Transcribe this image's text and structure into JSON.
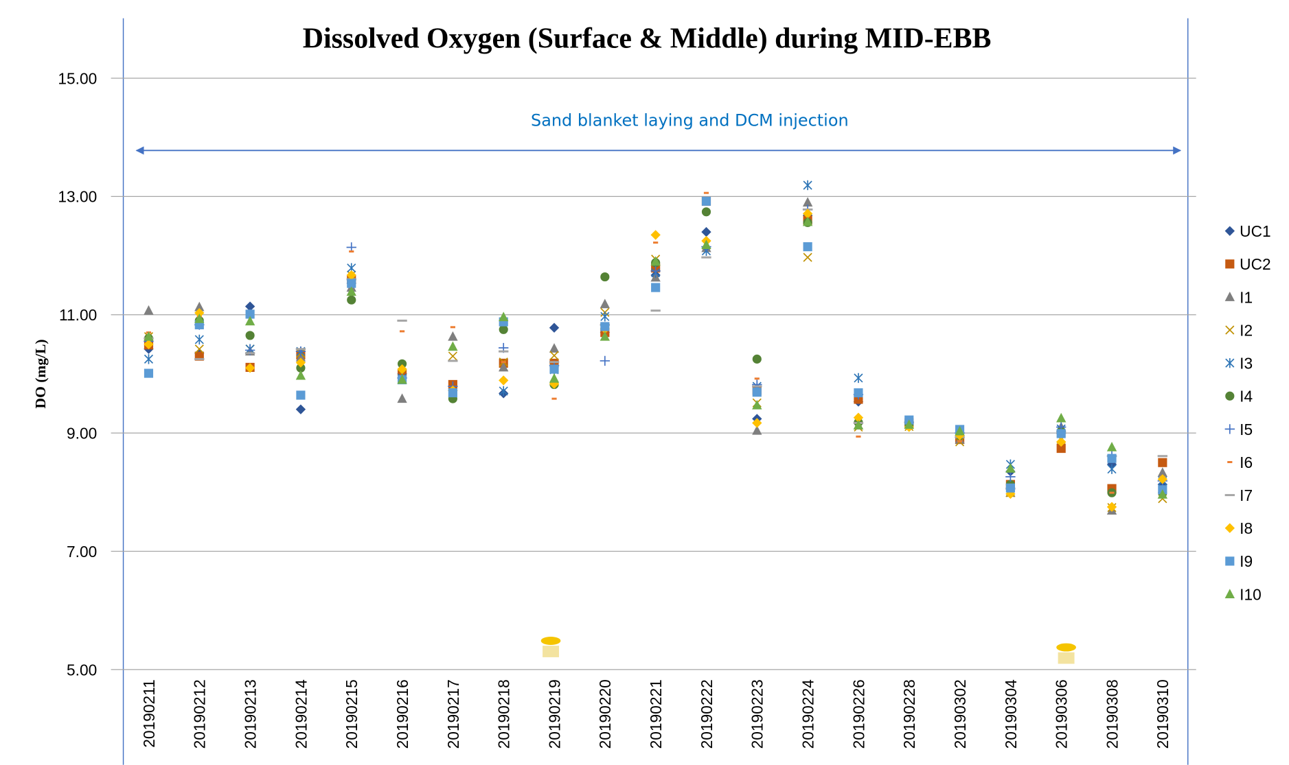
{
  "chart_data": {
    "type": "scatter",
    "title": "Dissolved Oxygen (Surface & Middle) during MID-EBB",
    "y_label": "DO (mg/L)",
    "annotation": "Sand blanket laying and DCM injection",
    "categories": [
      "20190211",
      "20190212",
      "20190213",
      "20190214",
      "20190215",
      "20190216",
      "20190217",
      "20190218",
      "20190219",
      "20190220",
      "20190221",
      "20190222",
      "20190223",
      "20190224",
      "20190226",
      "20190228",
      "20190302",
      "20190304",
      "20190306",
      "20190308",
      "20190310"
    ],
    "ylim": [
      5,
      15
    ],
    "yticks": [
      {
        "value": 5,
        "label": "5.00"
      },
      {
        "value": 7,
        "label": "7.00"
      },
      {
        "value": 9,
        "label": "9.00"
      },
      {
        "value": 11,
        "label": "11.00"
      },
      {
        "value": 13,
        "label": "13.00"
      },
      {
        "value": 15,
        "label": "15.00"
      }
    ],
    "grid": true,
    "legend": "right",
    "series": [
      {
        "name": "UC1",
        "color": "#2f5597",
        "marker": "diamond",
        "values": [
          10.42,
          10.35,
          11.14,
          9.4,
          11.53,
          10.0,
          9.72,
          9.67,
          10.78,
          10.7,
          11.67,
          12.4,
          9.24,
          12.68,
          9.53,
          9.17,
          8.96,
          8.35,
          9.03,
          8.47,
          8.13
        ]
      },
      {
        "name": "UC2",
        "color": "#c55a11",
        "marker": "square",
        "values": [
          10.49,
          10.3,
          10.11,
          10.32,
          11.6,
          10.0,
          9.82,
          10.18,
          10.18,
          10.7,
          11.79,
          12.92,
          9.72,
          12.6,
          9.57,
          9.17,
          8.89,
          8.13,
          8.74,
          8.06,
          8.5
        ]
      },
      {
        "name": "I1",
        "color": "#7f7f7f",
        "marker": "triangle",
        "values": [
          11.07,
          11.13,
          10.38,
          10.28,
          11.46,
          9.58,
          10.63,
          10.11,
          10.43,
          11.18,
          11.63,
          12.13,
          9.04,
          12.9,
          9.13,
          9.14,
          8.89,
          7.99,
          9.1,
          7.69,
          8.33
        ]
      },
      {
        "name": "I2",
        "color": "#bf9000",
        "marker": "x",
        "values": [
          10.63,
          10.42,
          10.42,
          10.35,
          11.67,
          10.0,
          10.3,
          10.2,
          10.31,
          11.04,
          11.94,
          12.18,
          9.51,
          11.97,
          9.1,
          9.11,
          8.85,
          7.99,
          8.89,
          7.74,
          7.89
        ]
      },
      {
        "name": "I3",
        "color": "#2e75b6",
        "marker": "asterisk",
        "values": [
          10.25,
          10.58,
          10.42,
          10.38,
          11.79,
          9.93,
          9.68,
          9.71,
          10.07,
          10.97,
          11.71,
          12.08,
          9.79,
          13.19,
          9.93,
          9.19,
          9.0,
          8.47,
          9.07,
          8.39,
          8.19
        ]
      },
      {
        "name": "I4",
        "color": "#548235",
        "marker": "circle",
        "values": [
          10.6,
          10.9,
          10.65,
          10.1,
          11.25,
          10.17,
          9.58,
          10.75,
          9.82,
          11.64,
          11.88,
          12.74,
          10.25,
          12.56,
          9.18,
          9.15,
          8.96,
          8.13,
          9.03,
          7.99,
          7.99
        ]
      },
      {
        "name": "I5",
        "color": "#4472c4",
        "marker": "plus",
        "values": [
          10.55,
          10.83,
          10.4,
          10.38,
          12.14,
          9.93,
          9.79,
          10.44,
          10.14,
          10.22,
          11.74,
          12.15,
          9.82,
          12.78,
          9.65,
          9.18,
          9.0,
          8.26,
          9.1,
          8.61,
          8.19
        ]
      },
      {
        "name": "I6",
        "color": "#ed7d31",
        "marker": "dash",
        "values": [
          10.7,
          10.97,
          10.1,
          10.2,
          12.07,
          10.72,
          10.79,
          10.2,
          9.58,
          10.76,
          12.22,
          13.06,
          9.92,
          12.68,
          8.94,
          9.13,
          8.86,
          8.06,
          8.96,
          7.99,
          8.26
        ]
      },
      {
        "name": "I7",
        "color": "#a5a5a5",
        "marker": "longdash",
        "values": [
          10.6,
          10.25,
          10.35,
          10.42,
          11.6,
          10.9,
          10.22,
          10.38,
          10.2,
          10.83,
          11.07,
          11.97,
          9.79,
          12.78,
          9.17,
          9.18,
          8.93,
          8.06,
          9.0,
          8.61,
          8.61
        ]
      },
      {
        "name": "I8",
        "color": "#ffc000",
        "marker": "diamond",
        "values": [
          10.5,
          11.03,
          10.1,
          10.19,
          11.67,
          10.08,
          9.72,
          9.89,
          9.83,
          10.76,
          12.35,
          12.25,
          9.17,
          12.71,
          9.26,
          9.1,
          8.96,
          7.97,
          8.85,
          7.75,
          8.22
        ]
      },
      {
        "name": "I9",
        "color": "#5b9bd5",
        "marker": "square",
        "values": [
          10.01,
          10.83,
          11.01,
          9.64,
          11.53,
          9.9,
          9.68,
          10.88,
          10.08,
          10.8,
          11.46,
          12.92,
          9.69,
          12.15,
          9.68,
          9.22,
          9.06,
          8.07,
          8.99,
          8.57,
          8.04
        ]
      },
      {
        "name": "I10",
        "color": "#70ad47",
        "marker": "triangle",
        "values": [
          10.63,
          10.93,
          10.89,
          9.97,
          11.39,
          9.9,
          10.46,
          10.96,
          9.92,
          10.63,
          11.9,
          12.18,
          9.47,
          12.57,
          9.13,
          9.14,
          9.03,
          8.4,
          9.25,
          8.76,
          7.96
        ]
      }
    ]
  }
}
